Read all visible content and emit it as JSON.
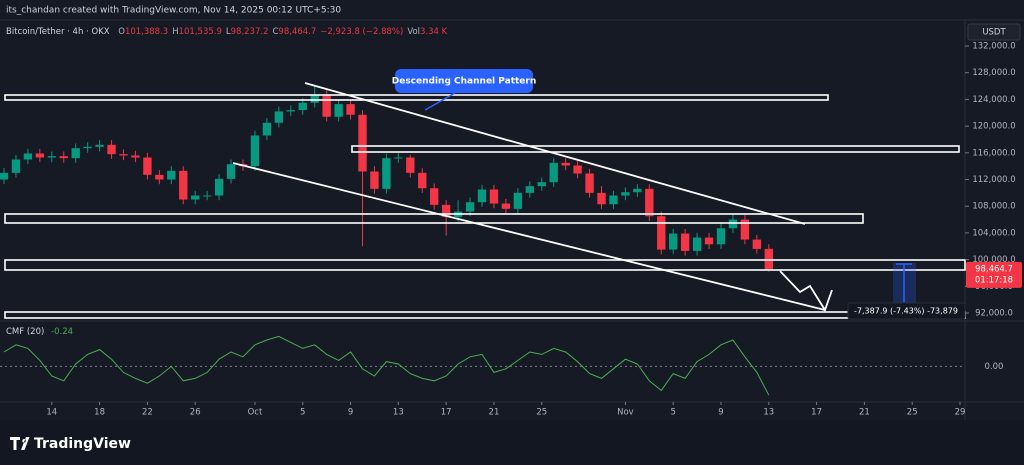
{
  "header": {
    "author_line": "its_chandan created with TradingView.com, Nov 14, 2025 00:12 UTC+5:30",
    "symbol": "Bitcoin/Tether · 4h · OKX",
    "ohlc": [
      {
        "key": "O",
        "value": "101,388.3"
      },
      {
        "key": "H",
        "value": "101,535.9"
      },
      {
        "key": "L",
        "value": "98,237.2"
      },
      {
        "key": "C",
        "value": "98,464.7"
      }
    ],
    "change": "−2,923.8 (−2.88%)",
    "volume_key": "Vol",
    "volume": "3.34 K",
    "currency": "USDT"
  },
  "branding": "TradingView",
  "chart_data": [
    {
      "type": "candlestick",
      "x": [
        "Sep 10",
        "Sep 11",
        "Sep 12",
        "Sep 13",
        "Sep 14",
        "Sep 15",
        "Sep 16",
        "Sep 17",
        "Sep 18",
        "Sep 19",
        "Sep 20",
        "Sep 21",
        "Sep 22",
        "Sep 23",
        "Sep 24",
        "Sep 25",
        "Sep 26",
        "Sep 27",
        "Sep 28",
        "Sep 29",
        "Sep 30",
        "Oct 1",
        "Oct 2",
        "Oct 3",
        "Oct 4",
        "Oct 5",
        "Oct 6",
        "Oct 7",
        "Oct 8",
        "Oct 9",
        "Oct 10",
        "Oct 11",
        "Oct 12",
        "Oct 13",
        "Oct 14",
        "Oct 15",
        "Oct 16",
        "Oct 17",
        "Oct 18",
        "Oct 19",
        "Oct 20",
        "Oct 21",
        "Oct 22",
        "Oct 23",
        "Oct 24",
        "Oct 25",
        "Oct 26",
        "Oct 27",
        "Oct 28",
        "Oct 29",
        "Oct 30",
        "Oct 31",
        "Nov 1",
        "Nov 2",
        "Nov 3",
        "Nov 4",
        "Nov 5",
        "Nov 6",
        "Nov 7",
        "Nov 8",
        "Nov 9",
        "Nov 10",
        "Nov 11",
        "Nov 12",
        "Nov 13"
      ],
      "open": [
        112000,
        113000,
        115000,
        115900,
        115300,
        115500,
        115200,
        116700,
        116900,
        117200,
        115800,
        115600,
        115300,
        112700,
        112000,
        113300,
        109000,
        109600,
        109600,
        112100,
        114300,
        114000,
        118600,
        120500,
        122200,
        122400,
        123500,
        124700,
        121400,
        123300,
        121700,
        113200,
        110600,
        115200,
        115300,
        113000,
        110700,
        108200,
        106400,
        107200,
        108600,
        110500,
        108400,
        107600,
        110000,
        111000,
        111600,
        114500,
        114100,
        112900,
        110000,
        108300,
        109600,
        110100,
        110600,
        106500,
        101500,
        103900,
        101300,
        103300,
        102300,
        104700,
        106000,
        103000,
        101600
      ],
      "high": [
        113700,
        115700,
        116600,
        116600,
        116200,
        116200,
        117400,
        117600,
        117900,
        117900,
        116500,
        116300,
        116000,
        113400,
        114000,
        114000,
        110300,
        110300,
        112800,
        115000,
        115000,
        119300,
        121200,
        122900,
        123100,
        124200,
        126100,
        125400,
        124000,
        124000,
        122400,
        114000,
        115900,
        116000,
        115700,
        113700,
        111400,
        108900,
        108900,
        109300,
        111200,
        111200,
        109100,
        110700,
        111700,
        112300,
        115200,
        115200,
        114800,
        113600,
        111000,
        110300,
        110800,
        111300,
        111300,
        107200,
        104600,
        104600,
        104000,
        104000,
        105400,
        106700,
        106700,
        103700,
        102300
      ],
      "low": [
        111300,
        112300,
        114300,
        114600,
        114600,
        114500,
        114500,
        116000,
        116200,
        115100,
        114900,
        114600,
        112000,
        111300,
        111300,
        108300,
        108300,
        108900,
        108900,
        111400,
        113300,
        113300,
        117900,
        119800,
        121500,
        121700,
        122800,
        120700,
        120700,
        121000,
        102000,
        109900,
        109900,
        114500,
        112300,
        110000,
        107500,
        103600,
        105700,
        106500,
        107900,
        107700,
        106900,
        106900,
        109300,
        110300,
        110900,
        113400,
        112200,
        109300,
        107600,
        107600,
        108900,
        109400,
        105800,
        100800,
        100800,
        100600,
        100600,
        101600,
        101600,
        104000,
        102300,
        100900,
        98200
      ],
      "close": [
        113000,
        115000,
        115900,
        115300,
        115500,
        115200,
        116700,
        116900,
        117200,
        115800,
        115600,
        115300,
        112700,
        112000,
        113300,
        109000,
        109600,
        109600,
        112100,
        114300,
        114000,
        118600,
        120500,
        122200,
        122400,
        123500,
        124700,
        121400,
        123300,
        121700,
        113200,
        110600,
        115200,
        115300,
        113000,
        110700,
        108200,
        106400,
        107200,
        108600,
        110500,
        108400,
        107600,
        110000,
        111000,
        111600,
        114500,
        114100,
        112900,
        110000,
        108300,
        109600,
        110100,
        110600,
        106500,
        101500,
        103900,
        101300,
        103300,
        102300,
        104700,
        106000,
        103000,
        101600,
        98465
      ],
      "up_color": "#089981",
      "down_color": "#f23645",
      "xlim": [
        "Sep 10",
        "Nov 29"
      ],
      "ylim": [
        90950,
        135600
      ],
      "yticks": [
        {
          "value": 92000,
          "label": "92,000.0"
        },
        {
          "value": 96000,
          "label": "96,000.0"
        },
        {
          "value": 100000,
          "label": "100,000.0"
        },
        {
          "value": 104000,
          "label": "104,000.0"
        },
        {
          "value": 108000,
          "label": "108,000.0"
        },
        {
          "value": 112000,
          "label": "112,000.0"
        },
        {
          "value": 116000,
          "label": "116,000.0"
        },
        {
          "value": 120000,
          "label": "120,000.0"
        },
        {
          "value": 124000,
          "label": "124,000.0"
        },
        {
          "value": 128000,
          "label": "128,000.0"
        },
        {
          "value": 132000,
          "label": "132,000.0"
        }
      ],
      "price_label": "98,464.7",
      "countdown": "01:17:18",
      "annotations": {
        "channel": "Descending Channel Pattern",
        "measure": "-7,387.9 (-7.43%) -73,879"
      }
    },
    {
      "type": "line",
      "name": "CMF (20)",
      "color": "#4caf50",
      "values": [
        0.12,
        0.18,
        0.15,
        0.05,
        -0.08,
        -0.12,
        0.02,
        0.1,
        0.14,
        0.06,
        -0.05,
        -0.1,
        -0.14,
        -0.08,
        0.0,
        -0.12,
        -0.1,
        -0.05,
        0.06,
        0.12,
        0.08,
        0.18,
        0.22,
        0.25,
        0.2,
        0.15,
        0.18,
        0.1,
        0.05,
        0.12,
        -0.02,
        -0.08,
        0.04,
        0.02,
        -0.06,
        -0.1,
        -0.12,
        -0.08,
        0.02,
        0.08,
        0.1,
        -0.05,
        -0.02,
        0.05,
        0.12,
        0.1,
        0.15,
        0.12,
        0.04,
        -0.06,
        -0.1,
        -0.02,
        0.06,
        0.02,
        -0.12,
        -0.2,
        -0.06,
        -0.1,
        0.04,
        0.1,
        0.18,
        0.22,
        0.08,
        -0.05,
        -0.24
      ],
      "ylim": [
        -0.28,
        0.37
      ],
      "yticks": [
        {
          "value": 0,
          "label": "0.00"
        }
      ],
      "xticks": [
        {
          "value": "Sep 14",
          "label": "14"
        },
        {
          "value": "Sep 18",
          "label": "18"
        },
        {
          "value": "Sep 22",
          "label": "22"
        },
        {
          "value": "Sep 26",
          "label": "26"
        },
        {
          "value": "Oct 1",
          "label": "Oct"
        },
        {
          "value": "Oct 5",
          "label": "5"
        },
        {
          "value": "Oct 9",
          "label": "9"
        },
        {
          "value": "Oct 13",
          "label": "13"
        },
        {
          "value": "Oct 17",
          "label": "17"
        },
        {
          "value": "Oct 21",
          "label": "21"
        },
        {
          "value": "Oct 25",
          "label": "25"
        },
        {
          "value": "Nov 1",
          "label": "Nov"
        },
        {
          "value": "Nov 5",
          "label": "5"
        },
        {
          "value": "Nov 9",
          "label": "9"
        },
        {
          "value": "Nov 13",
          "label": "13"
        },
        {
          "value": "Nov 17",
          "label": "17"
        },
        {
          "value": "Nov 21",
          "label": "21"
        },
        {
          "value": "Nov 25",
          "label": "25"
        },
        {
          "value": "Nov 29",
          "label": "29"
        }
      ]
    }
  ]
}
